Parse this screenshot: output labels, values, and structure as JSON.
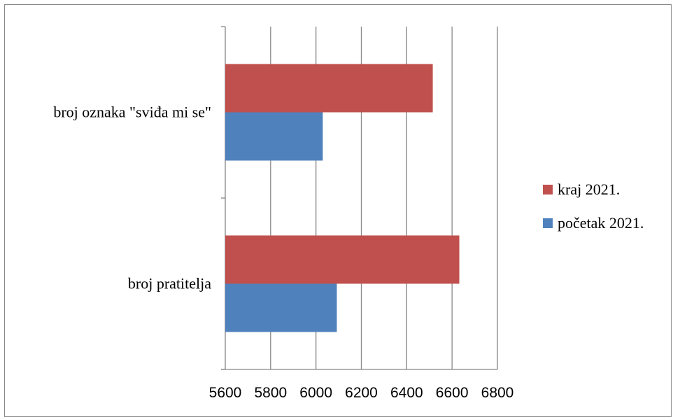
{
  "chart_data": {
    "type": "bar",
    "orientation": "horizontal",
    "categories": [
      "broj oznaka \"sviđa mi se\"",
      "broj pratitelja"
    ],
    "series": [
      {
        "name": "kraj 2021.",
        "color": "#C0504D",
        "values": [
          6515,
          6632
        ]
      },
      {
        "name": "početak 2021.",
        "color": "#4F81BD",
        "values": [
          6030,
          6092
        ]
      }
    ],
    "x_ticks": [
      5600,
      5800,
      6000,
      6200,
      6400,
      6600,
      6800
    ],
    "xlim": [
      5600,
      6800
    ],
    "grid": "vertical major gridlines",
    "legend_position": "right"
  }
}
